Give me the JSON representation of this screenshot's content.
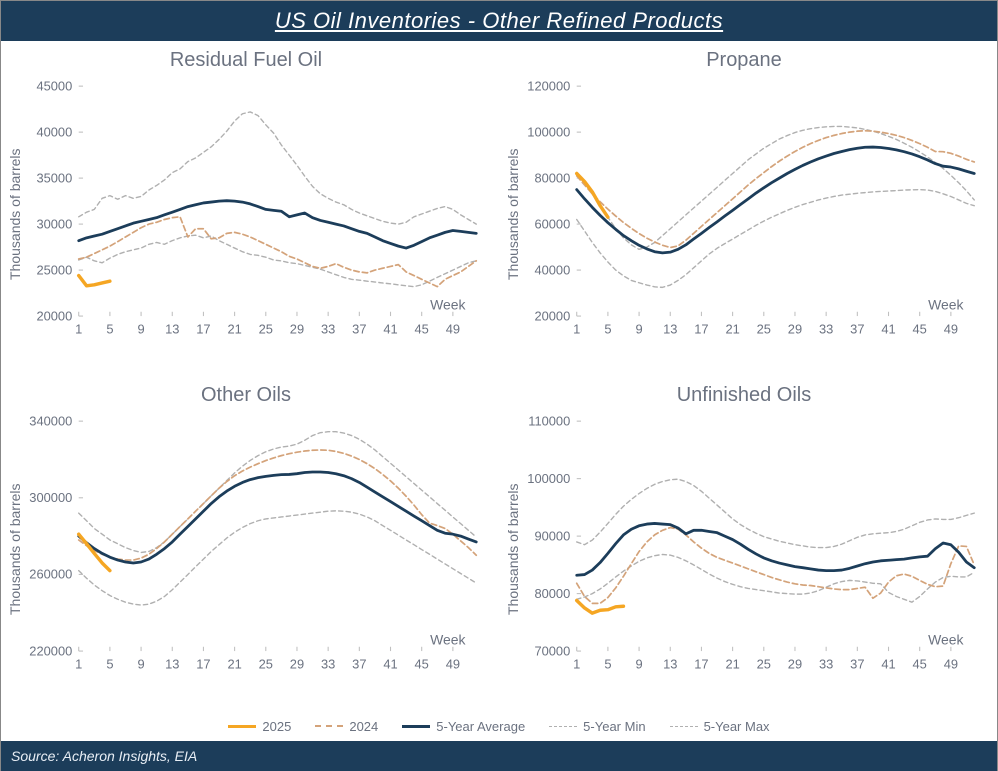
{
  "title": "US Oil Inventories - Other Refined Products",
  "source": "Source: Acheron Insights, EIA",
  "colors": {
    "title_bg": "#1c3d5a",
    "s2025": "#f5a623",
    "s2024": "#d4a37a",
    "avg": "#1c3d5a",
    "minmax": "#b0b0b0",
    "axis_text": "#6b7280",
    "grid": "#f0f0f0"
  },
  "legend": [
    {
      "label": "2025",
      "color": "#f5a623",
      "dash": "solid",
      "width": 3
    },
    {
      "label": "2024",
      "color": "#d4a37a",
      "dash": "dashed",
      "width": 2
    },
    {
      "label": "5-Year Average",
      "color": "#1c3d5a",
      "dash": "solid",
      "width": 3
    },
    {
      "label": "5-Year Min",
      "color": "#b0b0b0",
      "dash": "dashed",
      "width": 1.5
    },
    {
      "label": "5-Year Max",
      "color": "#b0b0b0",
      "dash": "dashed",
      "width": 1.5
    }
  ],
  "x": {
    "label": "Week",
    "min": 1,
    "max": 52,
    "ticks": [
      1,
      5,
      9,
      13,
      17,
      21,
      25,
      29,
      33,
      37,
      41,
      45,
      49
    ]
  },
  "panels": [
    {
      "id": "rfo",
      "title": "Residual Fuel Oil",
      "ylabel": "Thousands of barrels",
      "ymin": 20000,
      "ymax": 45000,
      "yticks": [
        20000,
        25000,
        30000,
        35000,
        40000,
        45000
      ],
      "series": {
        "max": [
          30800,
          31300,
          31600,
          32800,
          33100,
          32700,
          33100,
          32800,
          33000,
          33700,
          34200,
          34800,
          35600,
          36000,
          36800,
          37200,
          37800,
          38400,
          39200,
          40100,
          41200,
          42000,
          42200,
          41800,
          40800,
          39900,
          38600,
          37500,
          36400,
          35200,
          34100,
          33300,
          32800,
          32400,
          32100,
          31600,
          31200,
          30900,
          30600,
          30300,
          30100,
          30000,
          30200,
          30800,
          31100,
          31400,
          31700,
          31900,
          31600,
          31000,
          30500,
          30000
        ],
        "min": [
          26100,
          26400,
          26000,
          25800,
          26300,
          26700,
          27000,
          27200,
          27400,
          27800,
          28000,
          27800,
          28200,
          28500,
          28700,
          28800,
          28500,
          28700,
          28200,
          27800,
          27400,
          27000,
          26700,
          26600,
          26400,
          26100,
          26000,
          25800,
          25700,
          25500,
          25300,
          25100,
          24800,
          24500,
          24200,
          24000,
          23900,
          23800,
          23700,
          23600,
          23500,
          23400,
          23300,
          23200,
          23400,
          23800,
          24200,
          24600,
          25000,
          25400,
          25800,
          26000
        ],
        "avg": [
          28200,
          28500,
          28700,
          28900,
          29200,
          29500,
          29800,
          30100,
          30300,
          30500,
          30700,
          31000,
          31300,
          31600,
          31900,
          32100,
          32300,
          32400,
          32500,
          32550,
          32500,
          32400,
          32200,
          31900,
          31600,
          31500,
          31400,
          30800,
          31000,
          31200,
          30700,
          30400,
          30200,
          30000,
          29800,
          29500,
          29200,
          29000,
          28600,
          28200,
          27900,
          27600,
          27400,
          27700,
          28100,
          28500,
          28800,
          29100,
          29300,
          29200,
          29100,
          29000
        ],
        "s2024": [
          26200,
          26400,
          26800,
          27200,
          27600,
          28100,
          28600,
          29100,
          29600,
          30000,
          30200,
          30500,
          30700,
          30800,
          28600,
          29500,
          29500,
          28400,
          28500,
          29000,
          29100,
          28900,
          28600,
          28200,
          27800,
          27400,
          27000,
          26500,
          26200,
          25800,
          25400,
          25200,
          25400,
          25700,
          25300,
          25000,
          24800,
          24700,
          25000,
          25200,
          25400,
          25600,
          24800,
          24400,
          24000,
          23600,
          23200,
          24000,
          24400,
          24800,
          25400,
          26000
        ],
        "s2025": [
          24400,
          23300,
          23400,
          23600,
          23800
        ]
      }
    },
    {
      "id": "prop",
      "title": "Propane",
      "ylabel": "Thousands of barrels",
      "ymin": 20000,
      "ymax": 120000,
      "yticks": [
        20000,
        40000,
        60000,
        80000,
        100000,
        120000
      ],
      "series": {
        "max": [
          82000,
          78000,
          73000,
          68000,
          63000,
          58000,
          54000,
          51000,
          49000,
          50000,
          52000,
          55000,
          58000,
          61000,
          64000,
          67000,
          70000,
          73000,
          76000,
          79000,
          82000,
          85000,
          88000,
          90500,
          93000,
          95000,
          97000,
          98500,
          99800,
          100800,
          101500,
          102000,
          102300,
          102500,
          102500,
          102200,
          101800,
          101200,
          100400,
          99400,
          98200,
          96800,
          95200,
          93400,
          91400,
          89200,
          86800,
          84200,
          81200,
          78000,
          74500,
          70500
        ],
        "min": [
          62000,
          57000,
          52000,
          47500,
          43500,
          40000,
          37500,
          35500,
          34500,
          33500,
          32700,
          32500,
          33500,
          35500,
          38000,
          41000,
          44000,
          47000,
          49500,
          51500,
          53500,
          55500,
          57500,
          59500,
          61300,
          63000,
          64500,
          66000,
          67300,
          68500,
          69500,
          70500,
          71300,
          72000,
          72600,
          73000,
          73400,
          73700,
          74000,
          74200,
          74400,
          74600,
          74800,
          74900,
          75000,
          74800,
          74200,
          73200,
          72000,
          70500,
          69000,
          68000
        ],
        "avg": [
          75000,
          71000,
          67300,
          63800,
          60600,
          57700,
          55000,
          52800,
          50800,
          49200,
          48000,
          47500,
          47800,
          49000,
          51000,
          53500,
          56000,
          58500,
          61000,
          63500,
          66000,
          68500,
          71000,
          73500,
          75800,
          78000,
          80000,
          82000,
          83800,
          85500,
          87000,
          88400,
          89600,
          90700,
          91600,
          92400,
          93000,
          93400,
          93500,
          93300,
          92900,
          92300,
          91500,
          90500,
          89300,
          87900,
          86300,
          85200,
          84800,
          84000,
          83000,
          82000
        ],
        "s2024": [
          81000,
          77000,
          73200,
          69700,
          66500,
          63500,
          60700,
          58200,
          55900,
          53900,
          52200,
          50800,
          49800,
          50500,
          53000,
          56000,
          59000,
          62000,
          65000,
          68000,
          71000,
          74000,
          77000,
          79800,
          82400,
          85000,
          87400,
          89600,
          91600,
          93400,
          95000,
          96400,
          97600,
          98600,
          99400,
          100000,
          100400,
          100600,
          100400,
          100000,
          99400,
          98600,
          97600,
          96400,
          95000,
          93400,
          91600,
          91500,
          90800,
          89600,
          88200,
          87000
        ],
        "s2025": [
          82000,
          78500,
          74000,
          68000,
          63000
        ]
      }
    },
    {
      "id": "other",
      "title": "Other Oils",
      "ylabel": "Thousands of barrels",
      "ymin": 220000,
      "ymax": 340000,
      "yticks": [
        220000,
        260000,
        300000,
        340000
      ],
      "series": {
        "max": [
          292000,
          288000,
          284000,
          281000,
          278000,
          276000,
          274000,
          272500,
          271500,
          272000,
          274000,
          277000,
          281000,
          285000,
          289000,
          293000,
          297000,
          301000,
          305000,
          309000,
          313000,
          316500,
          319500,
          322000,
          324000,
          325500,
          326500,
          327000,
          328000,
          330000,
          332500,
          334000,
          334500,
          334500,
          333800,
          332500,
          330500,
          328000,
          325000,
          321500,
          318000,
          314500,
          311000,
          307500,
          304000,
          300500,
          297000,
          293500,
          290000,
          286500,
          283000,
          279500
        ],
        "min": [
          262000,
          258000,
          254500,
          251500,
          249000,
          247000,
          245500,
          244500,
          244000,
          244500,
          246000,
          248500,
          252000,
          256000,
          260000,
          264000,
          268000,
          272000,
          275500,
          279000,
          282000,
          284500,
          286500,
          288000,
          289000,
          289500,
          290000,
          290500,
          291000,
          291500,
          292000,
          292500,
          293000,
          293200,
          293000,
          292500,
          291500,
          290000,
          288000,
          285500,
          283000,
          280500,
          278000,
          275500,
          273000,
          270500,
          268000,
          265500,
          263000,
          260500,
          258000,
          255500
        ],
        "avg": [
          280000,
          276500,
          273500,
          271000,
          269000,
          267500,
          266500,
          266000,
          266500,
          268000,
          270500,
          273500,
          277000,
          281000,
          285000,
          289000,
          293000,
          297000,
          300500,
          303500,
          306000,
          308000,
          309500,
          310500,
          311200,
          311700,
          312100,
          312200,
          312600,
          313200,
          313500,
          313500,
          313200,
          312500,
          311500,
          310000,
          308000,
          305500,
          303000,
          300500,
          298000,
          295500,
          293000,
          290500,
          288000,
          285500,
          283000,
          281500,
          281000,
          280000,
          278500,
          277000
        ],
        "s2024": [
          278000,
          275000,
          272500,
          270500,
          269000,
          268000,
          267500,
          267500,
          268500,
          270500,
          273500,
          277000,
          281000,
          285000,
          289000,
          293000,
          297000,
          301000,
          305000,
          308500,
          311500,
          314000,
          316000,
          317800,
          319400,
          320800,
          322000,
          323000,
          323800,
          324400,
          324800,
          325000,
          324800,
          324200,
          323200,
          321800,
          320000,
          317800,
          315200,
          312200,
          308800,
          305000,
          300800,
          296200,
          291200,
          286800,
          285500,
          284000,
          281000,
          277500,
          274000,
          270000
        ],
        "s2025": [
          281000,
          276000,
          271000,
          266000,
          262000
        ]
      }
    },
    {
      "id": "unfin",
      "title": "Unfinished Oils",
      "ylabel": "Thousands of barrels",
      "ymin": 70000,
      "ymax": 110000,
      "yticks": [
        70000,
        80000,
        90000,
        100000,
        110000
      ],
      "series": {
        "max": [
          89000,
          88500,
          89300,
          90700,
          92200,
          93800,
          95200,
          96400,
          97400,
          98300,
          99000,
          99500,
          99800,
          99900,
          99500,
          98800,
          97800,
          96600,
          95400,
          94200,
          93000,
          92000,
          91200,
          90500,
          89900,
          89500,
          89100,
          88800,
          88500,
          88300,
          88100,
          88000,
          88000,
          88200,
          88600,
          89200,
          89800,
          90200,
          90400,
          90500,
          90600,
          90800,
          91200,
          91800,
          92400,
          92800,
          93000,
          92900,
          92900,
          93200,
          93600,
          94000
        ],
        "min": [
          79000,
          79400,
          80000,
          80800,
          81800,
          82900,
          83900,
          84800,
          85600,
          86200,
          86600,
          86800,
          86700,
          86300,
          85700,
          85000,
          84200,
          83400,
          82700,
          82100,
          81600,
          81200,
          80900,
          80700,
          80500,
          80300,
          80100,
          80000,
          79900,
          79900,
          80100,
          80500,
          81100,
          81700,
          82100,
          82300,
          82200,
          82000,
          81800,
          81700,
          80200,
          79500,
          79000,
          78500,
          79500,
          80800,
          82000,
          82800,
          83000,
          82900,
          82900,
          83700
        ],
        "avg": [
          83200,
          83300,
          84100,
          85400,
          87000,
          88700,
          90200,
          91200,
          91800,
          92100,
          92200,
          92100,
          92000,
          91400,
          90400,
          91000,
          91000,
          90800,
          90600,
          90000,
          89400,
          88600,
          87700,
          86900,
          86200,
          85700,
          85300,
          85000,
          84700,
          84500,
          84300,
          84100,
          84000,
          84000,
          84100,
          84400,
          84800,
          85200,
          85500,
          85700,
          85800,
          85900,
          86000,
          86200,
          86400,
          86500,
          87800,
          88800,
          88500,
          87200,
          85500,
          84500
        ],
        "s2024": [
          81800,
          79500,
          78300,
          78300,
          79300,
          81000,
          83000,
          85200,
          87300,
          89000,
          90200,
          91000,
          91500,
          91200,
          90200,
          89000,
          87900,
          87000,
          86300,
          85800,
          85300,
          84800,
          84300,
          83800,
          83300,
          82800,
          82400,
          82000,
          81700,
          81500,
          81400,
          81200,
          81000,
          80800,
          80700,
          80700,
          80900,
          81100,
          79200,
          80100,
          82000,
          83100,
          83400,
          83000,
          82300,
          81600,
          81200,
          81300,
          85200,
          88300,
          88200,
          85000
        ],
        "s2025": [
          78800,
          77500,
          76600,
          77100,
          77200,
          77700,
          77800
        ]
      }
    }
  ]
}
